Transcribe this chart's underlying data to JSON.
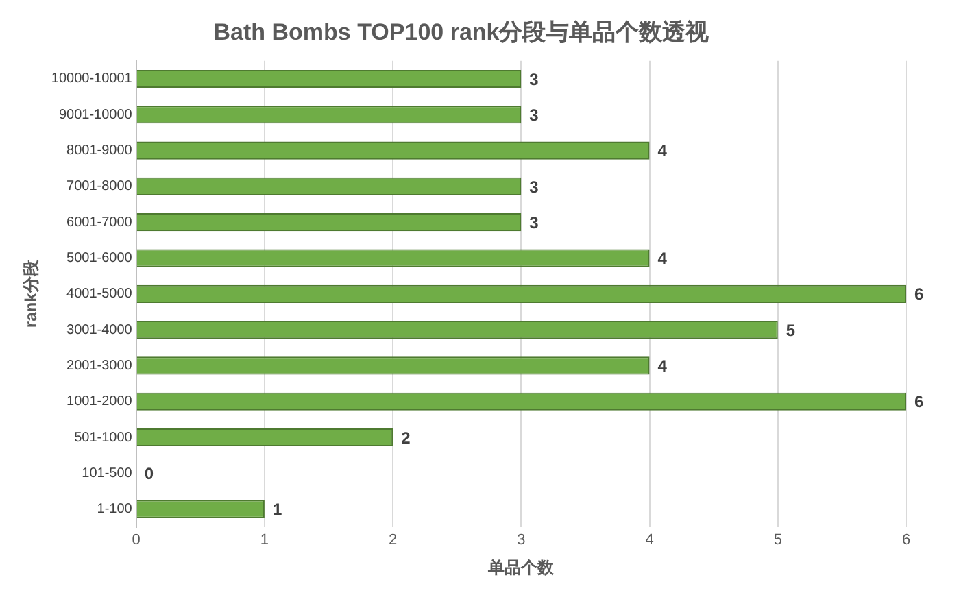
{
  "chart_data": {
    "type": "bar",
    "orientation": "horizontal",
    "title": "Bath Bombs TOP100 rank分段与单品个数透视",
    "xlabel": "单品个数",
    "ylabel": "rank分段",
    "categories": [
      "10000-10001",
      "9001-10000",
      "8001-9000",
      "7001-8000",
      "6001-7000",
      "5001-6000",
      "4001-5000",
      "3001-4000",
      "2001-3000",
      "1001-2000",
      "501-1000",
      "101-500",
      "1-100"
    ],
    "values": [
      3,
      3,
      4,
      3,
      3,
      4,
      6,
      5,
      4,
      6,
      2,
      0,
      1
    ],
    "color": "#70ad47",
    "xlim": [
      0,
      6
    ],
    "xticks": [
      0,
      1,
      2,
      3,
      4,
      5,
      6
    ],
    "grid": "x",
    "legend": false,
    "data_labels": true
  }
}
